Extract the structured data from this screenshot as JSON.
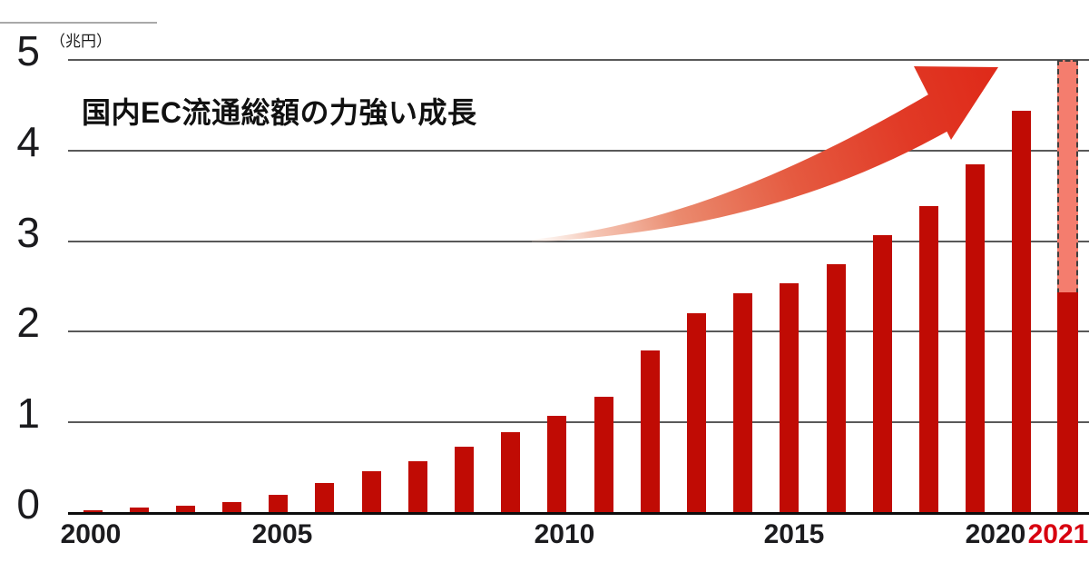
{
  "chart_data": {
    "type": "bar",
    "title": "国内EC流通総額の力強い成長",
    "unit_label": "（兆円）",
    "y_axis": {
      "unit": "兆円",
      "min": 0,
      "max": 5,
      "ticks": [
        0,
        1,
        2,
        3,
        4,
        5
      ],
      "grid": true
    },
    "x_tick_labels": [
      "2000",
      "2005",
      "2010",
      "2015",
      "2020",
      "2021"
    ],
    "highlight_tick": "2021",
    "years": [
      2000,
      2001,
      2002,
      2003,
      2004,
      2005,
      2006,
      2007,
      2008,
      2009,
      2010,
      2011,
      2012,
      2013,
      2014,
      2015,
      2016,
      2017,
      2018,
      2019,
      2020,
      2021
    ],
    "values": [
      0.03,
      0.06,
      0.08,
      0.12,
      0.2,
      0.33,
      0.46,
      0.57,
      0.73,
      0.89,
      1.07,
      1.28,
      1.79,
      2.2,
      2.42,
      2.54,
      2.75,
      3.07,
      3.39,
      3.85,
      4.44,
      2.43
    ],
    "forecast_2021": {
      "year": 2021,
      "solid_value": 2.43,
      "projected_value": 5.0,
      "style": "dashed-outline-light-fill"
    },
    "annotations": [
      {
        "name": "growth-arrow",
        "shape": "curved swoosh arrow rising left-to-right, fading tail"
      }
    ],
    "colors": {
      "bar": "#c00b04",
      "forecast_bar": "#f47d6e",
      "forecast_border": "#3f3f3f",
      "arrow_head": "#df2b1a",
      "arrow_tail": "#f6dccd",
      "highlight_label": "#d7000f",
      "grid": "#595959",
      "axis": "#0d0d0d",
      "text": "#1b1b1e"
    }
  }
}
